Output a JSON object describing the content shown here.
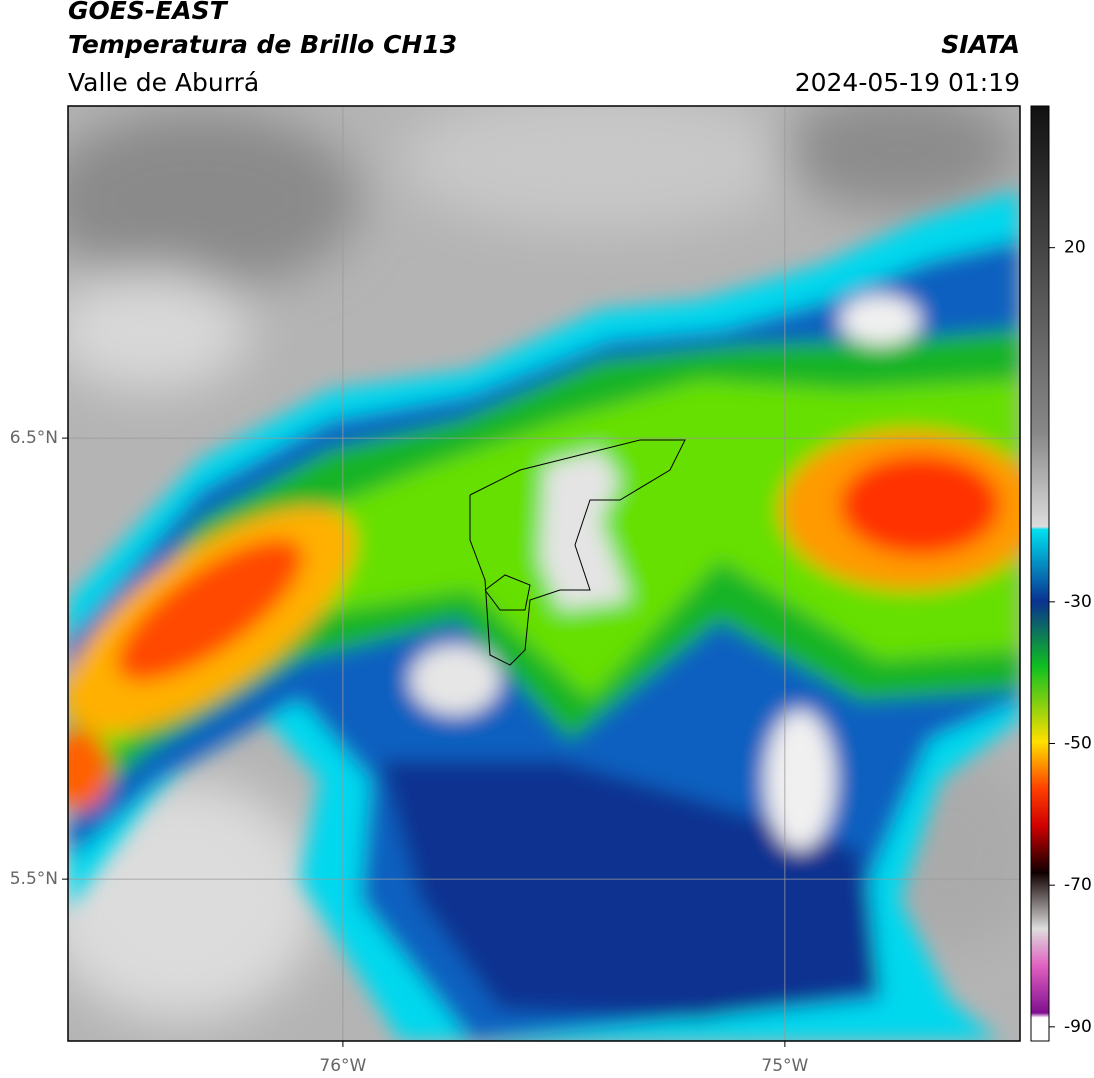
{
  "header": {
    "title": "GOES-EAST",
    "subtitle": "Temperatura de Brillo CH13",
    "region": "Valle de Aburrá",
    "source": "SIATA",
    "timestamp": "2024-05-19 01:19"
  },
  "map": {
    "xlim": [
      -76.622,
      -74.468
    ],
    "ylim": [
      5.133,
      7.253
    ],
    "xticks": [
      {
        "value": -76,
        "label": "76°W"
      },
      {
        "value": -75,
        "label": "75°W"
      }
    ],
    "yticks": [
      {
        "value": 6.5,
        "label": "6.5°N"
      },
      {
        "value": 5.5,
        "label": "5.5°N"
      }
    ],
    "grid": true
  },
  "colorbar": {
    "clim": [
      -92,
      40
    ],
    "ticks": [
      20,
      -30,
      -50,
      -70,
      -90
    ]
  }
}
